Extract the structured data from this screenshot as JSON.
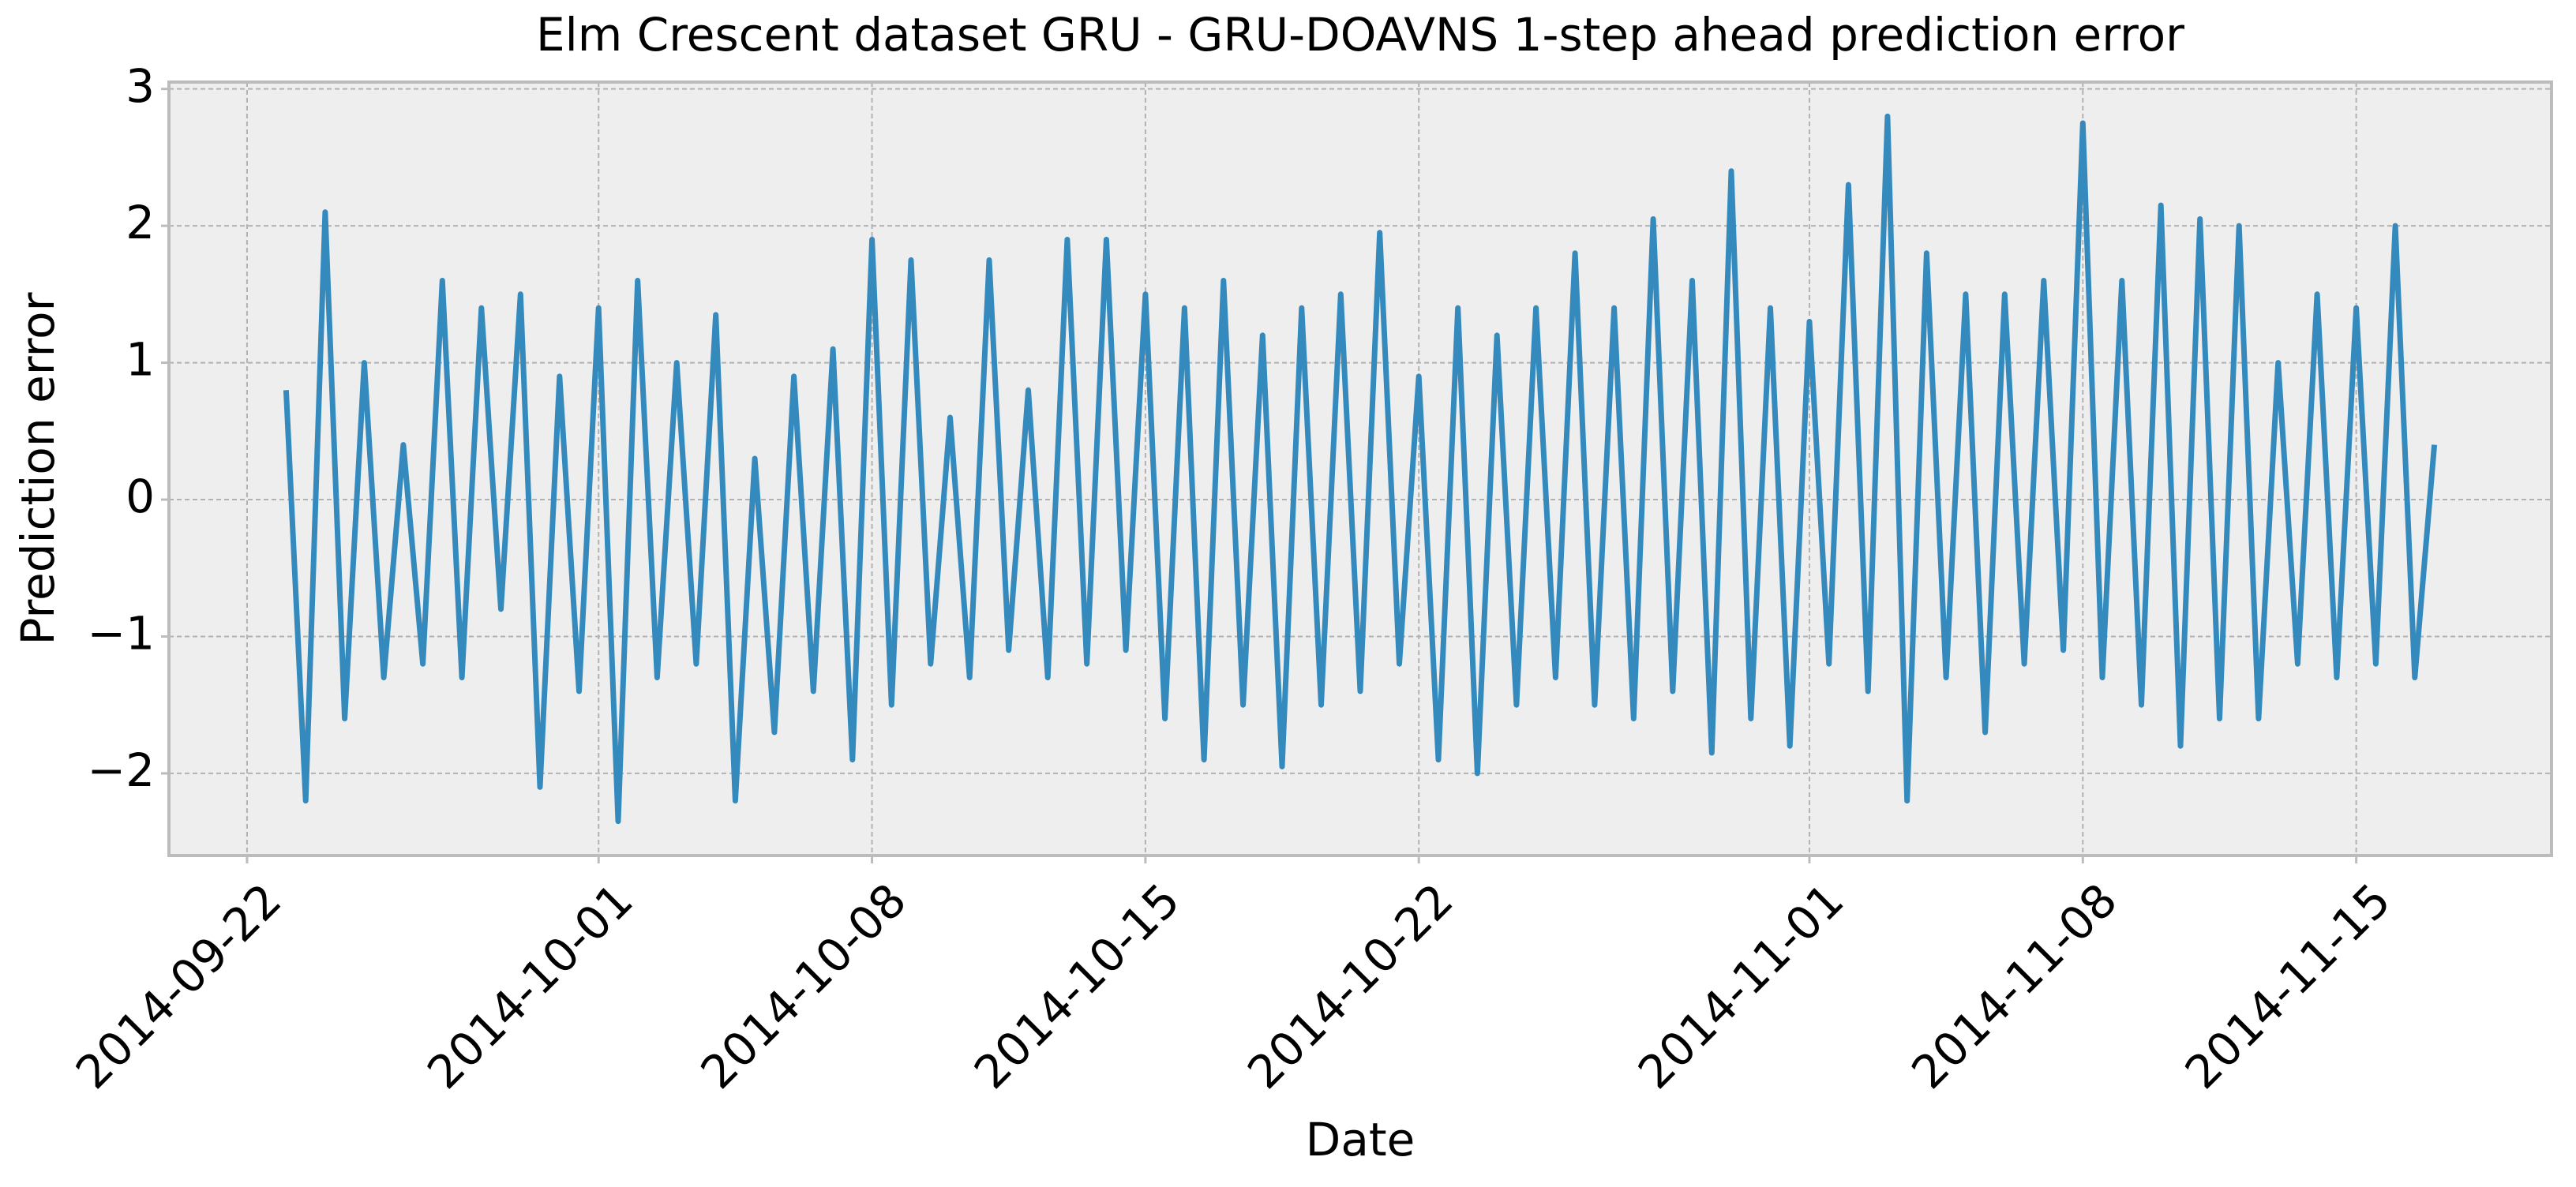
{
  "chart_data": {
    "type": "line",
    "title": "Elm Crescent dataset GRU - GRU-DOAVNS 1-step ahead prediction error",
    "xlabel": "Date",
    "ylabel": "Prediction error",
    "color": "#348abd",
    "grid": true,
    "xlim": [
      "2014-09-20",
      "2014-11-20"
    ],
    "xticks": [
      "2014-09-22",
      "2014-10-01",
      "2014-10-08",
      "2014-10-15",
      "2014-10-22",
      "2014-11-01",
      "2014-11-08",
      "2014-11-15"
    ],
    "ylim": [
      -2.6,
      3.05
    ],
    "yticks": [
      {
        "value": -2,
        "label": "−2"
      },
      {
        "value": -1,
        "label": "−1"
      },
      0,
      1,
      2,
      3
    ],
    "x": [
      "2014-09-23 00:00",
      "2014-09-23 12:00",
      "2014-09-24 00:00",
      "2014-09-24 12:00",
      "2014-09-25 00:00",
      "2014-09-25 12:00",
      "2014-09-26 00:00",
      "2014-09-26 12:00",
      "2014-09-27 00:00",
      "2014-09-27 12:00",
      "2014-09-28 00:00",
      "2014-09-28 12:00",
      "2014-09-29 00:00",
      "2014-09-29 12:00",
      "2014-09-30 00:00",
      "2014-09-30 12:00",
      "2014-10-01 00:00",
      "2014-10-01 12:00",
      "2014-10-02 00:00",
      "2014-10-02 12:00",
      "2014-10-03 00:00",
      "2014-10-03 12:00",
      "2014-10-04 00:00",
      "2014-10-04 12:00",
      "2014-10-05 00:00",
      "2014-10-05 12:00",
      "2014-10-06 00:00",
      "2014-10-06 12:00",
      "2014-10-07 00:00",
      "2014-10-07 12:00",
      "2014-10-08 00:00",
      "2014-10-08 12:00",
      "2014-10-09 00:00",
      "2014-10-09 12:00",
      "2014-10-10 00:00",
      "2014-10-10 12:00",
      "2014-10-11 00:00",
      "2014-10-11 12:00",
      "2014-10-12 00:00",
      "2014-10-12 12:00",
      "2014-10-13 00:00",
      "2014-10-13 12:00",
      "2014-10-14 00:00",
      "2014-10-14 12:00",
      "2014-10-15 00:00",
      "2014-10-15 12:00",
      "2014-10-16 00:00",
      "2014-10-16 12:00",
      "2014-10-17 00:00",
      "2014-10-17 12:00",
      "2014-10-18 00:00",
      "2014-10-18 12:00",
      "2014-10-19 00:00",
      "2014-10-19 12:00",
      "2014-10-20 00:00",
      "2014-10-20 12:00",
      "2014-10-21 00:00",
      "2014-10-21 12:00",
      "2014-10-22 00:00",
      "2014-10-22 12:00",
      "2014-10-23 00:00",
      "2014-10-23 12:00",
      "2014-10-24 00:00",
      "2014-10-24 12:00",
      "2014-10-25 00:00",
      "2014-10-25 12:00",
      "2014-10-26 00:00",
      "2014-10-26 12:00",
      "2014-10-27 00:00",
      "2014-10-27 12:00",
      "2014-10-28 00:00",
      "2014-10-28 12:00",
      "2014-10-29 00:00",
      "2014-10-29 12:00",
      "2014-10-30 00:00",
      "2014-10-30 12:00",
      "2014-10-31 00:00",
      "2014-10-31 12:00",
      "2014-11-01 00:00",
      "2014-11-01 12:00",
      "2014-11-02 00:00",
      "2014-11-02 12:00",
      "2014-11-03 00:00",
      "2014-11-03 12:00",
      "2014-11-04 00:00",
      "2014-11-04 12:00",
      "2014-11-05 00:00",
      "2014-11-05 12:00",
      "2014-11-06 00:00",
      "2014-11-06 12:00",
      "2014-11-07 00:00",
      "2014-11-07 12:00",
      "2014-11-08 00:00",
      "2014-11-08 12:00",
      "2014-11-09 00:00",
      "2014-11-09 12:00",
      "2014-11-10 00:00",
      "2014-11-10 12:00",
      "2014-11-11 00:00",
      "2014-11-11 12:00",
      "2014-11-12 00:00",
      "2014-11-12 12:00",
      "2014-11-13 00:00",
      "2014-11-13 12:00",
      "2014-11-14 00:00",
      "2014-11-14 12:00",
      "2014-11-15 00:00",
      "2014-11-15 12:00",
      "2014-11-16 00:00",
      "2014-11-16 12:00",
      "2014-11-17 00:00"
    ],
    "values": [
      0.8,
      -2.2,
      2.1,
      -1.6,
      1.0,
      -1.3,
      0.4,
      -1.2,
      1.6,
      -1.3,
      1.4,
      -0.8,
      1.5,
      -2.1,
      0.9,
      -1.4,
      1.4,
      -2.35,
      1.6,
      -1.3,
      1.0,
      -1.2,
      1.35,
      -2.2,
      0.3,
      -1.7,
      0.9,
      -1.4,
      1.1,
      -1.9,
      1.9,
      -1.5,
      1.75,
      -1.2,
      0.6,
      -1.3,
      1.75,
      -1.1,
      0.8,
      -1.3,
      1.9,
      -1.2,
      1.9,
      -1.1,
      1.5,
      -1.6,
      1.4,
      -1.9,
      1.6,
      -1.5,
      1.2,
      -1.95,
      1.4,
      -1.5,
      1.5,
      -1.4,
      1.95,
      -1.2,
      0.9,
      -1.9,
      1.4,
      -2.0,
      1.2,
      -1.5,
      1.4,
      -1.3,
      1.8,
      -1.5,
      1.4,
      -1.6,
      2.05,
      -1.4,
      1.6,
      -1.85,
      2.4,
      -1.6,
      1.4,
      -1.8,
      1.3,
      -1.2,
      2.3,
      -1.4,
      2.8,
      -2.2,
      1.8,
      -1.3,
      1.5,
      -1.7,
      1.5,
      -1.2,
      1.6,
      -1.1,
      2.75,
      -1.3,
      1.6,
      -1.5,
      2.15,
      -1.8,
      2.05,
      -1.6,
      2.0,
      -1.6,
      1.0,
      -1.2,
      1.5,
      -1.3,
      1.4,
      -1.2,
      2.0,
      -1.3,
      0.4
    ]
  }
}
